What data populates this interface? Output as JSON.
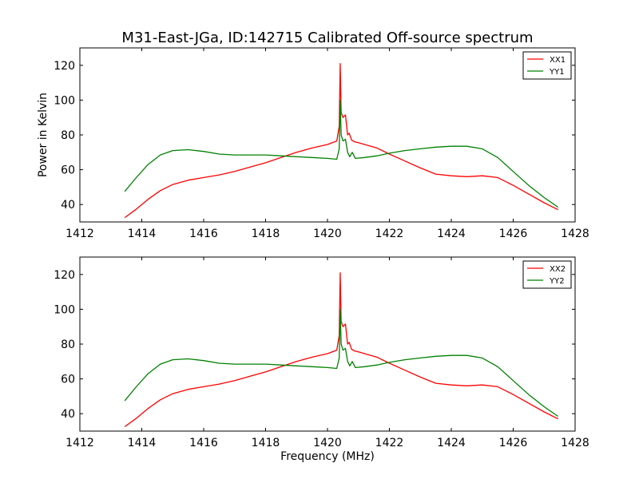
{
  "figure": {
    "title": "M31-East-JGa, ID:142715 Calibrated Off-source spectrum"
  },
  "chart_data": [
    {
      "type": "line",
      "title": "M31-East-JGa, ID:142715 Calibrated Off-source spectrum",
      "xlabel": "",
      "ylabel": "Power in Kelvin",
      "xlim": [
        1412,
        1428
      ],
      "ylim": [
        30,
        130
      ],
      "xticks": [
        1412,
        1414,
        1416,
        1418,
        1420,
        1422,
        1424,
        1426,
        1428
      ],
      "yticks": [
        40,
        60,
        80,
        100,
        120
      ],
      "legend_position": "top-right",
      "series": [
        {
          "name": "XX1",
          "color": "#ff0000",
          "x": [
            1413.45,
            1413.8,
            1414.2,
            1414.6,
            1415.0,
            1415.5,
            1416.0,
            1416.5,
            1417.0,
            1417.5,
            1418.0,
            1418.5,
            1419.0,
            1419.5,
            1420.0,
            1420.3,
            1420.38,
            1420.41,
            1420.44,
            1420.5,
            1420.58,
            1420.65,
            1420.7,
            1420.78,
            1420.88,
            1421.0,
            1421.3,
            1421.6,
            1422.0,
            1422.5,
            1423.0,
            1423.5,
            1424.0,
            1424.5,
            1425.0,
            1425.5,
            1426.0,
            1426.5,
            1427.0,
            1427.45
          ],
          "y": [
            32.5,
            37,
            43,
            48,
            51.5,
            54,
            55.5,
            57,
            59,
            61.5,
            64,
            67,
            70,
            72.5,
            74.5,
            76.5,
            85,
            121,
            93,
            90,
            91.5,
            80,
            81,
            77,
            76,
            75.5,
            74,
            72.5,
            69,
            65,
            61,
            57.5,
            56.5,
            56,
            56.5,
            55.5,
            51,
            46,
            41,
            37
          ]
        },
        {
          "name": "YY1",
          "color": "#008000",
          "x": [
            1413.45,
            1413.8,
            1414.2,
            1414.6,
            1415.0,
            1415.5,
            1416.0,
            1416.5,
            1417.0,
            1417.5,
            1418.0,
            1418.5,
            1419.0,
            1419.5,
            1420.0,
            1420.3,
            1420.38,
            1420.41,
            1420.44,
            1420.5,
            1420.58,
            1420.65,
            1420.72,
            1420.8,
            1420.9,
            1421.2,
            1421.6,
            1422.0,
            1422.5,
            1423.0,
            1423.5,
            1424.0,
            1424.5,
            1425.0,
            1425.5,
            1426.0,
            1426.5,
            1427.0,
            1427.45
          ],
          "y": [
            47.5,
            55,
            63,
            68.5,
            71,
            71.5,
            70.5,
            69,
            68.5,
            68.5,
            68.5,
            68,
            67.5,
            67,
            66.5,
            66,
            72,
            100,
            80,
            76.5,
            77.5,
            70,
            67.5,
            70,
            66.5,
            67,
            68,
            69.5,
            71,
            72,
            73,
            73.5,
            73.5,
            72,
            67,
            59,
            51,
            44,
            38.5
          ]
        }
      ]
    },
    {
      "type": "line",
      "title": "",
      "xlabel": "Frequency (MHz)",
      "ylabel": "",
      "xlim": [
        1412,
        1428
      ],
      "ylim": [
        30,
        130
      ],
      "xticks": [
        1412,
        1414,
        1416,
        1418,
        1420,
        1422,
        1424,
        1426,
        1428
      ],
      "yticks": [
        40,
        60,
        80,
        100,
        120
      ],
      "legend_position": "top-right",
      "series": [
        {
          "name": "XX2",
          "color": "#ff0000",
          "x": [
            1413.45,
            1413.8,
            1414.2,
            1414.6,
            1415.0,
            1415.5,
            1416.0,
            1416.5,
            1417.0,
            1417.5,
            1418.0,
            1418.5,
            1419.0,
            1419.5,
            1420.0,
            1420.3,
            1420.38,
            1420.41,
            1420.44,
            1420.5,
            1420.58,
            1420.65,
            1420.7,
            1420.78,
            1420.88,
            1421.0,
            1421.3,
            1421.6,
            1422.0,
            1422.5,
            1423.0,
            1423.5,
            1424.0,
            1424.5,
            1425.0,
            1425.5,
            1426.0,
            1426.5,
            1427.0,
            1427.45
          ],
          "y": [
            32.5,
            37,
            43,
            48,
            51.5,
            54,
            55.5,
            57,
            59,
            61.5,
            64,
            67,
            70,
            72.5,
            74.5,
            76.5,
            85,
            121,
            93,
            90,
            91.5,
            80,
            81,
            77,
            76,
            75.5,
            74,
            72.5,
            69,
            65,
            61,
            57.5,
            56.5,
            56,
            56.5,
            55.5,
            51,
            46,
            41,
            37
          ]
        },
        {
          "name": "YY2",
          "color": "#008000",
          "x": [
            1413.45,
            1413.8,
            1414.2,
            1414.6,
            1415.0,
            1415.5,
            1416.0,
            1416.5,
            1417.0,
            1417.5,
            1418.0,
            1418.5,
            1419.0,
            1419.5,
            1420.0,
            1420.3,
            1420.38,
            1420.41,
            1420.44,
            1420.5,
            1420.58,
            1420.65,
            1420.72,
            1420.8,
            1420.9,
            1421.2,
            1421.6,
            1422.0,
            1422.5,
            1423.0,
            1423.5,
            1424.0,
            1424.5,
            1425.0,
            1425.5,
            1426.0,
            1426.5,
            1427.0,
            1427.45
          ],
          "y": [
            47.5,
            55,
            63,
            68.5,
            71,
            71.5,
            70.5,
            69,
            68.5,
            68.5,
            68.5,
            68,
            67.5,
            67,
            66.5,
            66,
            72,
            100,
            80,
            76.5,
            77.5,
            70,
            67.5,
            70,
            66.5,
            67,
            68,
            69.5,
            71,
            72,
            73,
            73.5,
            73.5,
            72,
            67,
            59,
            51,
            44,
            38.5
          ]
        }
      ]
    }
  ]
}
